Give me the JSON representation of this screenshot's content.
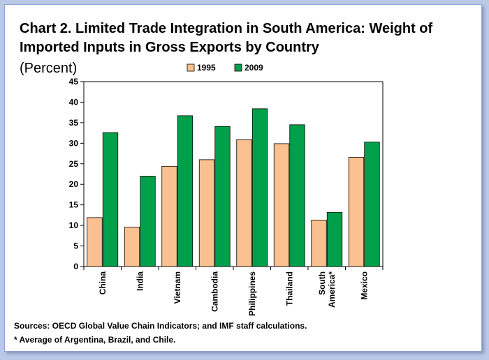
{
  "title": {
    "line1": "Chart 2. Limited Trade Integration in South America: Weight of",
    "line2": "Imported Inputs in Gross Exports by Country",
    "unit": "(Percent)"
  },
  "footnotes": {
    "source": "Sources: OECD Global Value Chain Indicators; and IMF staff calculations.",
    "note": "* Average of Argentina, Brazil, and Chile."
  },
  "chart_data": {
    "type": "bar",
    "categories": [
      [
        "China"
      ],
      [
        "India"
      ],
      [
        "Vietnam"
      ],
      [
        "Cambodia"
      ],
      [
        "Philippines"
      ],
      [
        "Thailand"
      ],
      [
        "South",
        "America*"
      ],
      [
        "Mexico"
      ]
    ],
    "series": [
      {
        "name": "1995",
        "color": "#fac090",
        "values": [
          11.9,
          9.6,
          24.4,
          26.0,
          30.9,
          29.9,
          11.3,
          26.6
        ]
      },
      {
        "name": "2009",
        "color": "#00a04b",
        "values": [
          32.6,
          22.0,
          36.7,
          34.1,
          38.4,
          34.5,
          13.2,
          30.3
        ]
      }
    ],
    "ylim": [
      0,
      45
    ],
    "yticks": [
      0,
      5,
      10,
      15,
      20,
      25,
      30,
      35,
      40,
      45
    ],
    "xlabel": "",
    "ylabel": "",
    "legend": "top-center",
    "grid": false
  }
}
